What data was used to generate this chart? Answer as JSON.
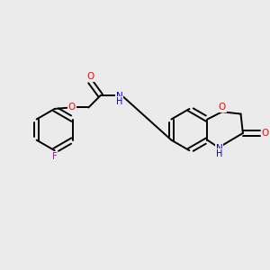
{
  "background_color": "#ebebeb",
  "bond_color": "#000000",
  "atom_colors": {
    "O": "#ff0000",
    "N": "#0000cd",
    "F": "#cc00cc",
    "C": "#000000",
    "H": "#000000"
  },
  "figsize": [
    3.0,
    3.0
  ],
  "dpi": 100,
  "bond_lw": 1.4,
  "fontsize": 7.5
}
